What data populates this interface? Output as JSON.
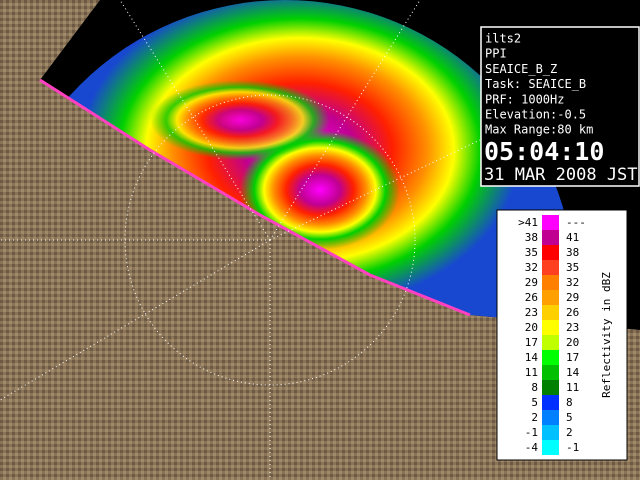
{
  "info": {
    "lines": [
      "ilts2",
      "PPI",
      "SEAICE_B_Z",
      "Task: SEAICE_B",
      "PRF: 1000Hz",
      "Elevation:-0.5",
      "Max Range:80 km"
    ],
    "time": "05:04:10",
    "date": "31 MAR 2008 JST"
  },
  "legend": {
    "title": "Reflectivity in dBZ",
    "rows": [
      {
        "low": ">41",
        "high": "---",
        "color": "#ff00ff"
      },
      {
        "low": "38",
        "high": "41",
        "color": "#c00090"
      },
      {
        "low": "35",
        "high": "38",
        "color": "#ff0000"
      },
      {
        "low": "32",
        "high": "35",
        "color": "#ff4020"
      },
      {
        "low": "29",
        "high": "32",
        "color": "#ff8000"
      },
      {
        "low": "26",
        "high": "29",
        "color": "#ffa000"
      },
      {
        "low": "23",
        "high": "26",
        "color": "#ffd000"
      },
      {
        "low": "20",
        "high": "23",
        "color": "#ffff00"
      },
      {
        "low": "17",
        "high": "20",
        "color": "#c0ff00"
      },
      {
        "low": "14",
        "high": "17",
        "color": "#00ff00"
      },
      {
        "low": "11",
        "high": "14",
        "color": "#00c000"
      },
      {
        "low": "8",
        "high": "11",
        "color": "#008000"
      },
      {
        "low": "5",
        "high": "8",
        "color": "#0030ff"
      },
      {
        "low": "2",
        "high": "5",
        "color": "#0080ff"
      },
      {
        "low": "-1",
        "high": "2",
        "color": "#00c0ff"
      },
      {
        "low": "-4",
        "high": "-1",
        "color": "#00ffff"
      }
    ]
  }
}
